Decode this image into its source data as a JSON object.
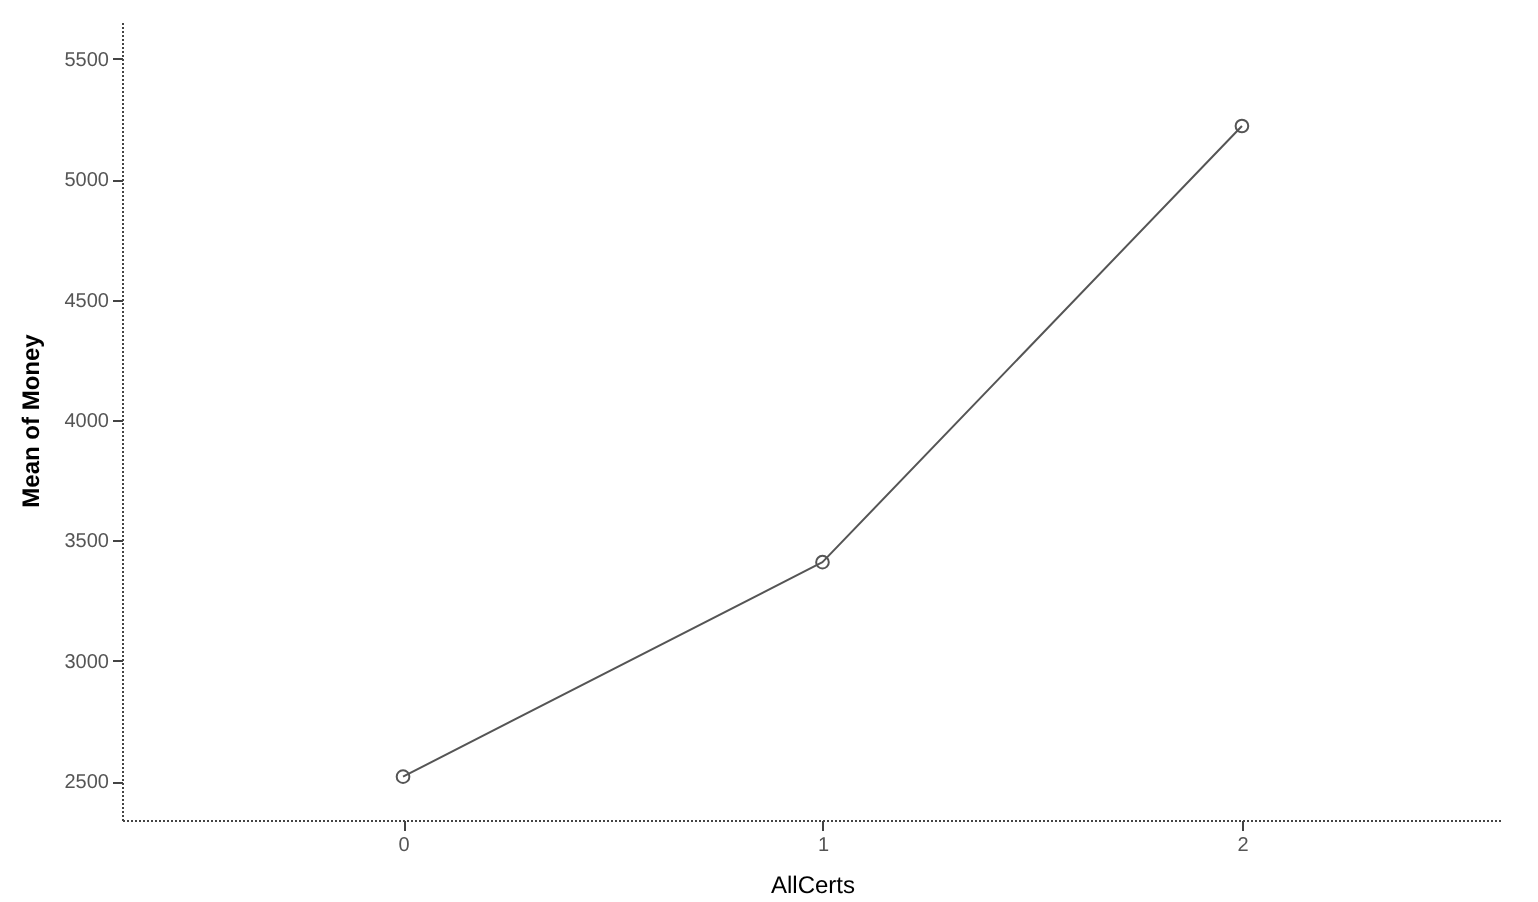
{
  "chart_data": {
    "type": "line",
    "xlabel": "AllCerts",
    "ylabel": "Mean of Money",
    "x": [
      0,
      1,
      2
    ],
    "series": [
      {
        "color": "#555555",
        "values": [
          2520,
          3410,
          5220
        ]
      }
    ],
    "xlim": [
      -0.67,
      2.62
    ],
    "xticks": [
      0,
      1,
      2
    ],
    "ylim": [
      2340,
      5660
    ],
    "yticks": [
      2500,
      3000,
      3500,
      4000,
      4500,
      5000,
      5500
    ],
    "marker": "circle",
    "line_style": "solid",
    "grid": false,
    "legend": false
  }
}
